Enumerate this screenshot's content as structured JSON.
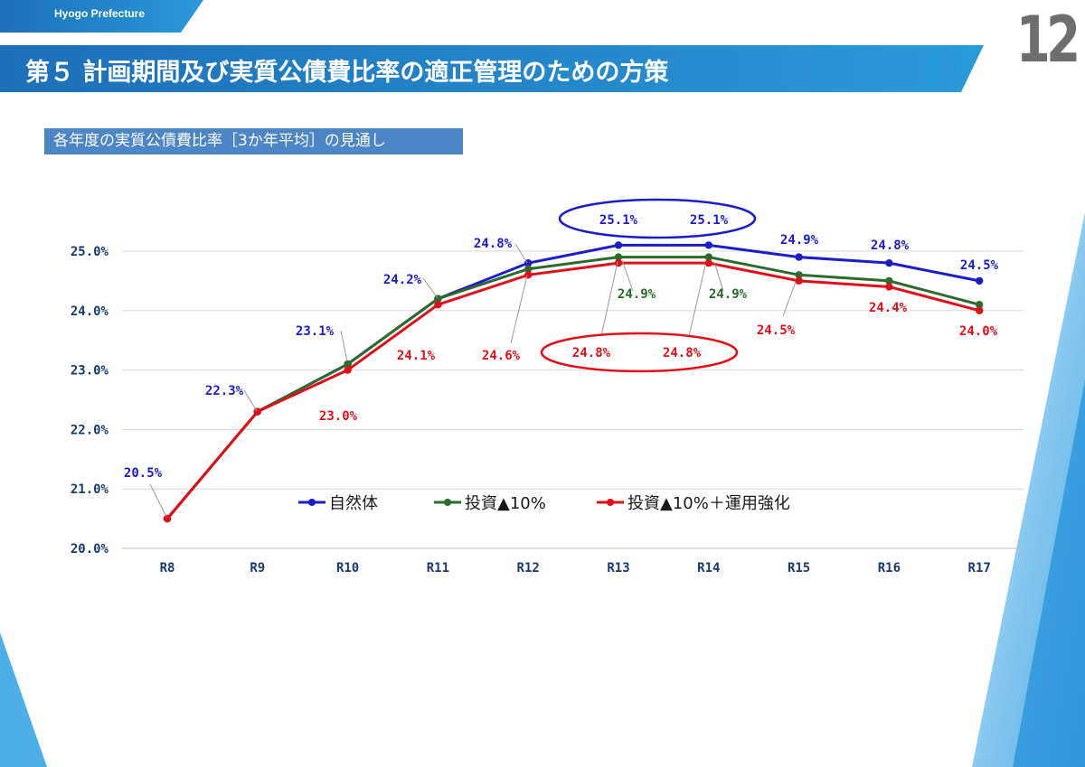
{
  "header": {
    "tag": "Hyogo Prefecture",
    "page_number": "12",
    "title": "第５ 計画期間及び実質公債費比率の適正管理のための方策",
    "subtitle": "各年度の実質公債費比率［3か年平均］の見通し"
  },
  "colors": {
    "header_band": "#1f7fc4",
    "subtitle_bg": "#4d86c6",
    "series_natural": "#1c1cc8",
    "series_invest": "#2d6a2d",
    "series_invest_ops": "#e0101a"
  },
  "chart_data": {
    "type": "line",
    "categories": [
      "R8",
      "R9",
      "R10",
      "R11",
      "R12",
      "R13",
      "R14",
      "R15",
      "R16",
      "R17"
    ],
    "yticks": [
      "20.0%",
      "21.0%",
      "22.0%",
      "23.0%",
      "24.0%",
      "25.0%"
    ],
    "ylim": [
      20.0,
      25.0
    ],
    "grid": true,
    "legend_position": "center",
    "series": [
      {
        "name": "自然体",
        "color": "#1c1cc8",
        "values": [
          20.5,
          22.3,
          23.1,
          24.2,
          24.8,
          25.1,
          25.1,
          24.9,
          24.8,
          24.5
        ],
        "labels": [
          "20.5%",
          "22.3%",
          "23.1%",
          "24.2%",
          "24.8%",
          "25.1%",
          "25.1%",
          "24.9%",
          "24.8%",
          "24.5%"
        ]
      },
      {
        "name": "投資▲10%",
        "color": "#2d6a2d",
        "values": [
          20.5,
          22.3,
          23.1,
          24.2,
          24.7,
          24.9,
          24.9,
          24.6,
          24.5,
          24.1
        ],
        "labels": [
          "",
          "",
          "",
          "",
          "",
          "24.9%",
          "24.9%",
          "",
          "",
          ""
        ]
      },
      {
        "name": "投資▲10%＋運用強化",
        "color": "#e0101a",
        "values": [
          20.5,
          22.3,
          23.0,
          24.1,
          24.6,
          24.8,
          24.8,
          24.5,
          24.4,
          24.0
        ],
        "labels": [
          "",
          "",
          "23.0%",
          "24.1%",
          "24.6%",
          "24.8%",
          "24.8%",
          "24.5%",
          "24.4%",
          "24.0%"
        ]
      }
    ]
  }
}
